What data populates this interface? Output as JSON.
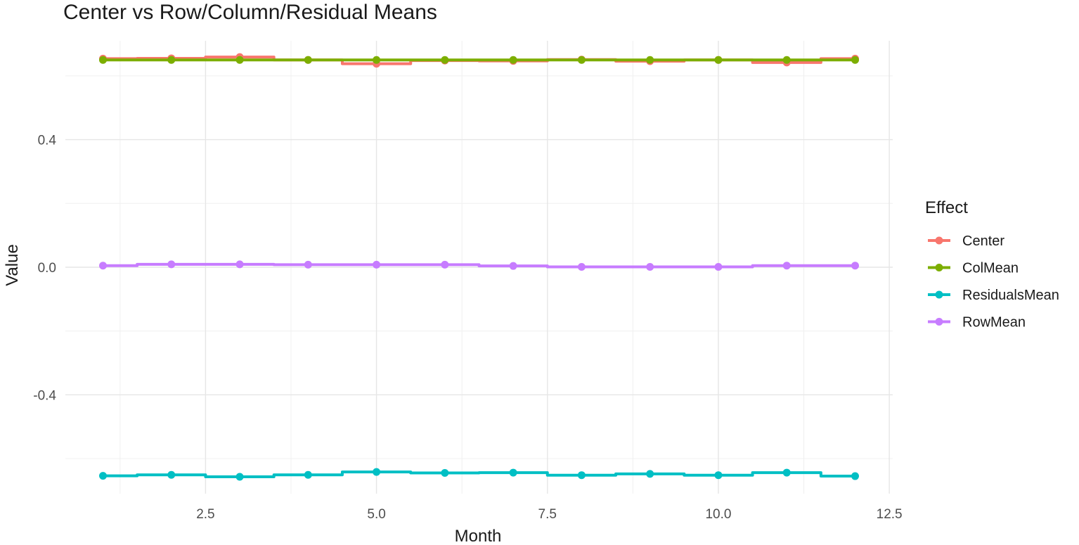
{
  "chart_data": {
    "type": "line",
    "title": "Center vs Row/Column/Residual Means",
    "xlabel": "Month",
    "ylabel": "Value",
    "xlim": [
      0.45,
      12.55
    ],
    "ylim": [
      -0.71,
      0.71
    ],
    "x_ticks": [
      2.5,
      5.0,
      7.5,
      10.0,
      12.5
    ],
    "x_tick_labels": [
      "2.5",
      "5.0",
      "7.5",
      "10.0",
      "12.5"
    ],
    "y_ticks": [
      -0.4,
      0.0,
      0.4
    ],
    "y_tick_labels": [
      "-0.4",
      "0.0",
      "0.4"
    ],
    "grid": true,
    "legend_title": "Effect",
    "legend_position": "right",
    "x": [
      1,
      2,
      3,
      4,
      5,
      6,
      7,
      8,
      9,
      10,
      11,
      12
    ],
    "series": [
      {
        "name": "Center",
        "color": "#F8766D",
        "values": [
          0.654,
          0.655,
          0.659,
          0.65,
          0.638,
          0.648,
          0.647,
          0.651,
          0.646,
          0.65,
          0.642,
          0.654
        ]
      },
      {
        "name": "ColMean",
        "color": "#7CAE00",
        "values": [
          0.65,
          0.65,
          0.65,
          0.65,
          0.65,
          0.65,
          0.65,
          0.65,
          0.65,
          0.65,
          0.65,
          0.65
        ]
      },
      {
        "name": "ResidualsMean",
        "color": "#00BFC4",
        "values": [
          -0.654,
          -0.651,
          -0.657,
          -0.651,
          -0.642,
          -0.645,
          -0.644,
          -0.652,
          -0.648,
          -0.652,
          -0.644,
          -0.655
        ]
      },
      {
        "name": "RowMean",
        "color": "#C77CFF",
        "values": [
          0.005,
          0.009,
          0.009,
          0.008,
          0.008,
          0.008,
          0.004,
          0.001,
          0.001,
          0.001,
          0.005,
          0.005
        ]
      }
    ]
  }
}
